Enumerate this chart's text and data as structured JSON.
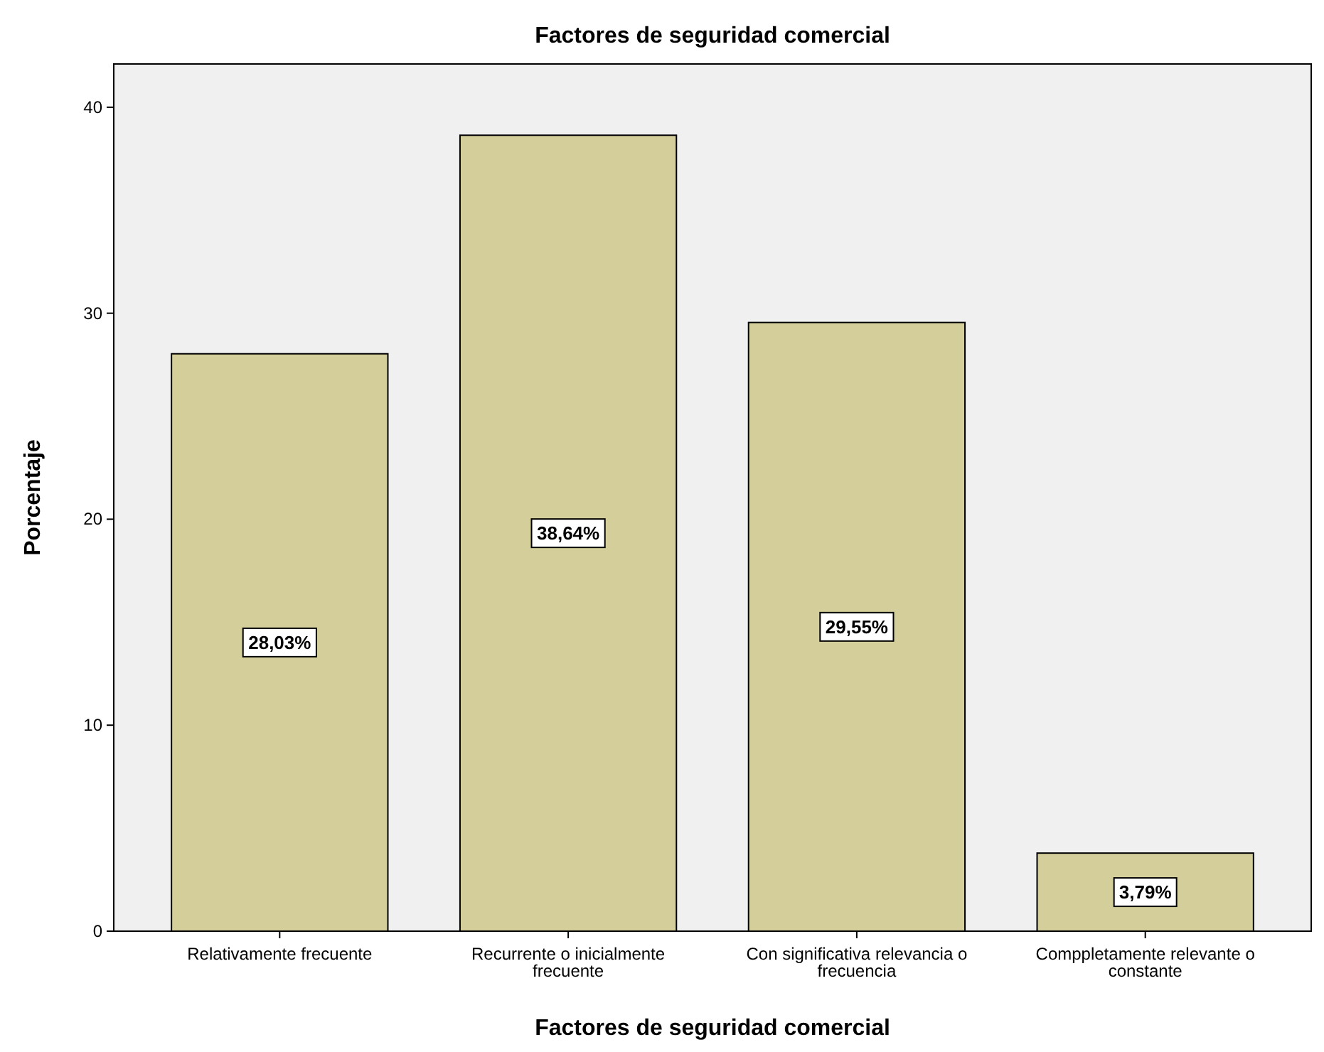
{
  "chart_data": {
    "type": "bar",
    "title": "Factores de seguridad comercial",
    "xlabel": "Factores de seguridad comercial",
    "ylabel": "Porcentaje",
    "categories": [
      "Relativamente frecuente",
      "Recurrente o inicialmente frecuente",
      "Con significativa relevancia o frecuencia",
      "Comppletamente relevante o constante"
    ],
    "values": [
      28.03,
      38.64,
      29.55,
      3.79
    ],
    "value_labels": [
      "28,03%",
      "38,64%",
      "29,55%",
      "3,79%"
    ],
    "color": "#d3ce9a",
    "ylim": [
      0,
      42.1
    ],
    "yticks": [
      0,
      10,
      20,
      30,
      40
    ],
    "grid": false
  }
}
